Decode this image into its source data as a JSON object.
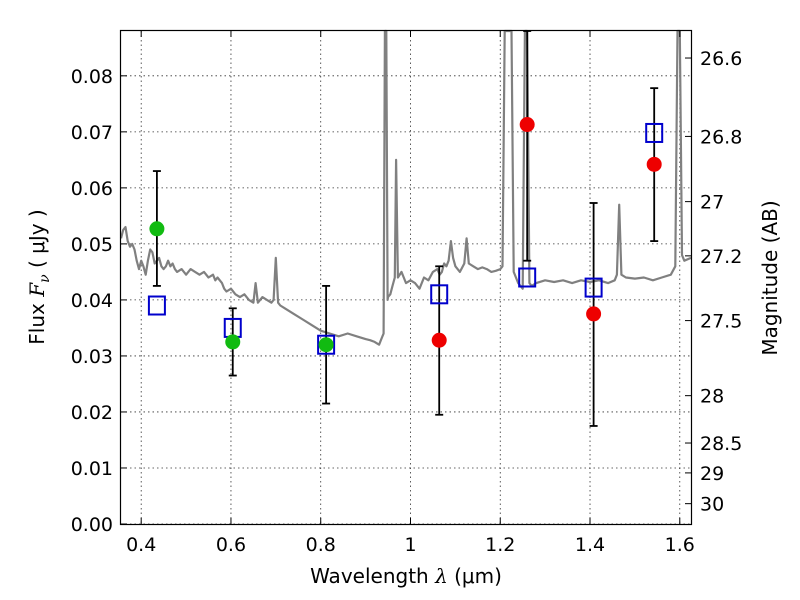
{
  "chart_data": {
    "type": "scatter",
    "xlabel": "Wavelength  λ (μm)",
    "ylabel": "Flux  F_ν  ( μJy )",
    "ylabel_parts": {
      "prefix": "Flux  ",
      "symbol": "F",
      "subscript": "ν",
      "unit": "  ( μJy )"
    },
    "xlabel_parts": {
      "prefix": "Wavelength  ",
      "symbol": "λ",
      "unit": " (μm)"
    },
    "y2label": "Magnitude (AB)",
    "xlim": [
      0.355,
      1.625
    ],
    "ylim": [
      0.0,
      0.088
    ],
    "grid": true,
    "x_ticks": [
      {
        "value": 0.4,
        "label": "0.4"
      },
      {
        "value": 0.6,
        "label": "0.6"
      },
      {
        "value": 0.8,
        "label": "0.8"
      },
      {
        "value": 1.0,
        "label": "1"
      },
      {
        "value": 1.2,
        "label": "1.2"
      },
      {
        "value": 1.4,
        "label": "1.4"
      },
      {
        "value": 1.6,
        "label": "1.6"
      }
    ],
    "y_ticks": [
      {
        "value": 0.0,
        "label": "0.00"
      },
      {
        "value": 0.01,
        "label": "0.01"
      },
      {
        "value": 0.02,
        "label": "0.02"
      },
      {
        "value": 0.03,
        "label": "0.03"
      },
      {
        "value": 0.04,
        "label": "0.04"
      },
      {
        "value": 0.05,
        "label": "0.05"
      },
      {
        "value": 0.06,
        "label": "0.06"
      },
      {
        "value": 0.07,
        "label": "0.07"
      },
      {
        "value": 0.08,
        "label": "0.08"
      }
    ],
    "mag_ticks": [
      {
        "value": 26.6,
        "label": "26.6"
      },
      {
        "value": 26.8,
        "label": "26.8"
      },
      {
        "value": 27.0,
        "label": "27"
      },
      {
        "value": 27.2,
        "label": "27.2"
      },
      {
        "value": 27.5,
        "label": "27.5"
      },
      {
        "value": 28.0,
        "label": "28"
      },
      {
        "value": 28.5,
        "label": "28.5"
      },
      {
        "value": 29.0,
        "label": "29"
      },
      {
        "value": 30.0,
        "label": "30"
      }
    ],
    "series": [
      {
        "kind": "spectrum",
        "color": "#808080",
        "points": [
          [
            0.355,
            0.051
          ],
          [
            0.36,
            0.0525
          ],
          [
            0.365,
            0.053
          ],
          [
            0.37,
            0.0505
          ],
          [
            0.375,
            0.0495
          ],
          [
            0.38,
            0.05
          ],
          [
            0.385,
            0.049
          ],
          [
            0.39,
            0.047
          ],
          [
            0.395,
            0.0455
          ],
          [
            0.4,
            0.047
          ],
          [
            0.405,
            0.046
          ],
          [
            0.41,
            0.0445
          ],
          [
            0.415,
            0.047
          ],
          [
            0.42,
            0.049
          ],
          [
            0.425,
            0.0485
          ],
          [
            0.43,
            0.0465
          ],
          [
            0.435,
            0.047
          ],
          [
            0.44,
            0.0475
          ],
          [
            0.445,
            0.046
          ],
          [
            0.45,
            0.0455
          ],
          [
            0.455,
            0.046
          ],
          [
            0.46,
            0.047
          ],
          [
            0.465,
            0.046
          ],
          [
            0.47,
            0.0465
          ],
          [
            0.475,
            0.0455
          ],
          [
            0.48,
            0.045
          ],
          [
            0.49,
            0.0455
          ],
          [
            0.5,
            0.0445
          ],
          [
            0.51,
            0.0455
          ],
          [
            0.52,
            0.045
          ],
          [
            0.53,
            0.0445
          ],
          [
            0.54,
            0.045
          ],
          [
            0.55,
            0.044
          ],
          [
            0.56,
            0.0445
          ],
          [
            0.565,
            0.0435
          ],
          [
            0.57,
            0.044
          ],
          [
            0.58,
            0.043
          ],
          [
            0.585,
            0.042
          ],
          [
            0.59,
            0.0415
          ],
          [
            0.6,
            0.042
          ],
          [
            0.61,
            0.041
          ],
          [
            0.62,
            0.0405
          ],
          [
            0.63,
            0.041
          ],
          [
            0.64,
            0.04
          ],
          [
            0.65,
            0.0395
          ],
          [
            0.655,
            0.043
          ],
          [
            0.66,
            0.0395
          ],
          [
            0.67,
            0.0405
          ],
          [
            0.68,
            0.04
          ],
          [
            0.69,
            0.0395
          ],
          [
            0.695,
            0.04
          ],
          [
            0.7,
            0.0475
          ],
          [
            0.705,
            0.0395
          ],
          [
            0.71,
            0.039
          ],
          [
            0.72,
            0.0385
          ],
          [
            0.74,
            0.0375
          ],
          [
            0.76,
            0.0365
          ],
          [
            0.78,
            0.0355
          ],
          [
            0.8,
            0.0345
          ],
          [
            0.82,
            0.034
          ],
          [
            0.84,
            0.0335
          ],
          [
            0.86,
            0.034
          ],
          [
            0.88,
            0.0335
          ],
          [
            0.9,
            0.033
          ],
          [
            0.91,
            0.0328
          ],
          [
            0.92,
            0.0325
          ],
          [
            0.93,
            0.032
          ],
          [
            0.935,
            0.033
          ],
          [
            0.94,
            0.034
          ],
          [
            0.943,
            0.088
          ],
          [
            0.946,
            0.088
          ],
          [
            0.949,
            0.04
          ],
          [
            0.95,
            0.0405
          ],
          [
            0.955,
            0.041
          ],
          [
            0.96,
            0.0425
          ],
          [
            0.965,
            0.044
          ],
          [
            0.968,
            0.065
          ],
          [
            0.972,
            0.044
          ],
          [
            0.98,
            0.045
          ],
          [
            0.99,
            0.043
          ],
          [
            1.0,
            0.0435
          ],
          [
            1.01,
            0.043
          ],
          [
            1.02,
            0.042
          ],
          [
            1.03,
            0.044
          ],
          [
            1.04,
            0.0435
          ],
          [
            1.05,
            0.045
          ],
          [
            1.06,
            0.0455
          ],
          [
            1.065,
            0.0445
          ],
          [
            1.07,
            0.045
          ],
          [
            1.075,
            0.0465
          ],
          [
            1.08,
            0.046
          ],
          [
            1.085,
            0.047
          ],
          [
            1.09,
            0.0505
          ],
          [
            1.095,
            0.0475
          ],
          [
            1.1,
            0.046
          ],
          [
            1.11,
            0.045
          ],
          [
            1.12,
            0.0465
          ],
          [
            1.125,
            0.051
          ],
          [
            1.13,
            0.0465
          ],
          [
            1.14,
            0.046
          ],
          [
            1.15,
            0.0455
          ],
          [
            1.16,
            0.0458
          ],
          [
            1.17,
            0.0455
          ],
          [
            1.18,
            0.045
          ],
          [
            1.19,
            0.0452
          ],
          [
            1.2,
            0.0455
          ],
          [
            1.205,
            0.046
          ],
          [
            1.21,
            0.088
          ],
          [
            1.225,
            0.088
          ],
          [
            1.23,
            0.045
          ],
          [
            1.24,
            0.043
          ],
          [
            1.25,
            0.042
          ],
          [
            1.255,
            0.088
          ],
          [
            1.26,
            0.088
          ],
          [
            1.265,
            0.043
          ],
          [
            1.27,
            0.0425
          ],
          [
            1.28,
            0.043
          ],
          [
            1.3,
            0.0435
          ],
          [
            1.32,
            0.0432
          ],
          [
            1.34,
            0.0435
          ],
          [
            1.36,
            0.043
          ],
          [
            1.38,
            0.0435
          ],
          [
            1.4,
            0.0432
          ],
          [
            1.42,
            0.0435
          ],
          [
            1.44,
            0.043
          ],
          [
            1.455,
            0.0435
          ],
          [
            1.46,
            0.0445
          ],
          [
            1.465,
            0.057
          ],
          [
            1.47,
            0.0445
          ],
          [
            1.48,
            0.044
          ],
          [
            1.5,
            0.0438
          ],
          [
            1.52,
            0.044
          ],
          [
            1.54,
            0.0435
          ],
          [
            1.56,
            0.044
          ],
          [
            1.58,
            0.0445
          ],
          [
            1.59,
            0.046
          ],
          [
            1.595,
            0.088
          ],
          [
            1.6,
            0.088
          ],
          [
            1.605,
            0.048
          ],
          [
            1.61,
            0.047
          ],
          [
            1.625,
            0.0475
          ]
        ]
      },
      {
        "kind": "model-boxes",
        "color": "#0000cc",
        "x": [
          0.435,
          0.604,
          0.812,
          1.064,
          1.26,
          1.408,
          1.543
        ],
        "values": [
          0.039,
          0.035,
          0.032,
          0.041,
          0.044,
          0.0422,
          0.0698
        ]
      },
      {
        "kind": "detections",
        "color": "#11bb11",
        "x": [
          0.435,
          0.604,
          0.812
        ],
        "values": [
          0.0527,
          0.0325,
          0.032
        ]
      },
      {
        "kind": "detections",
        "color": "#ee0000",
        "x": [
          1.064,
          1.26,
          1.408,
          1.543
        ],
        "values": [
          0.0328,
          0.0713,
          0.0375,
          0.0642
        ]
      },
      {
        "kind": "errorbars",
        "color": "#000000",
        "x": [
          0.435,
          0.604,
          0.812,
          1.064,
          1.26,
          1.408,
          1.543
        ],
        "low": [
          0.0425,
          0.0265,
          0.0215,
          0.0195,
          0.047,
          0.0175,
          0.0505
        ],
        "high": [
          0.063,
          0.0385,
          0.0425,
          0.046,
          0.088,
          0.0573,
          0.0778
        ]
      }
    ]
  }
}
